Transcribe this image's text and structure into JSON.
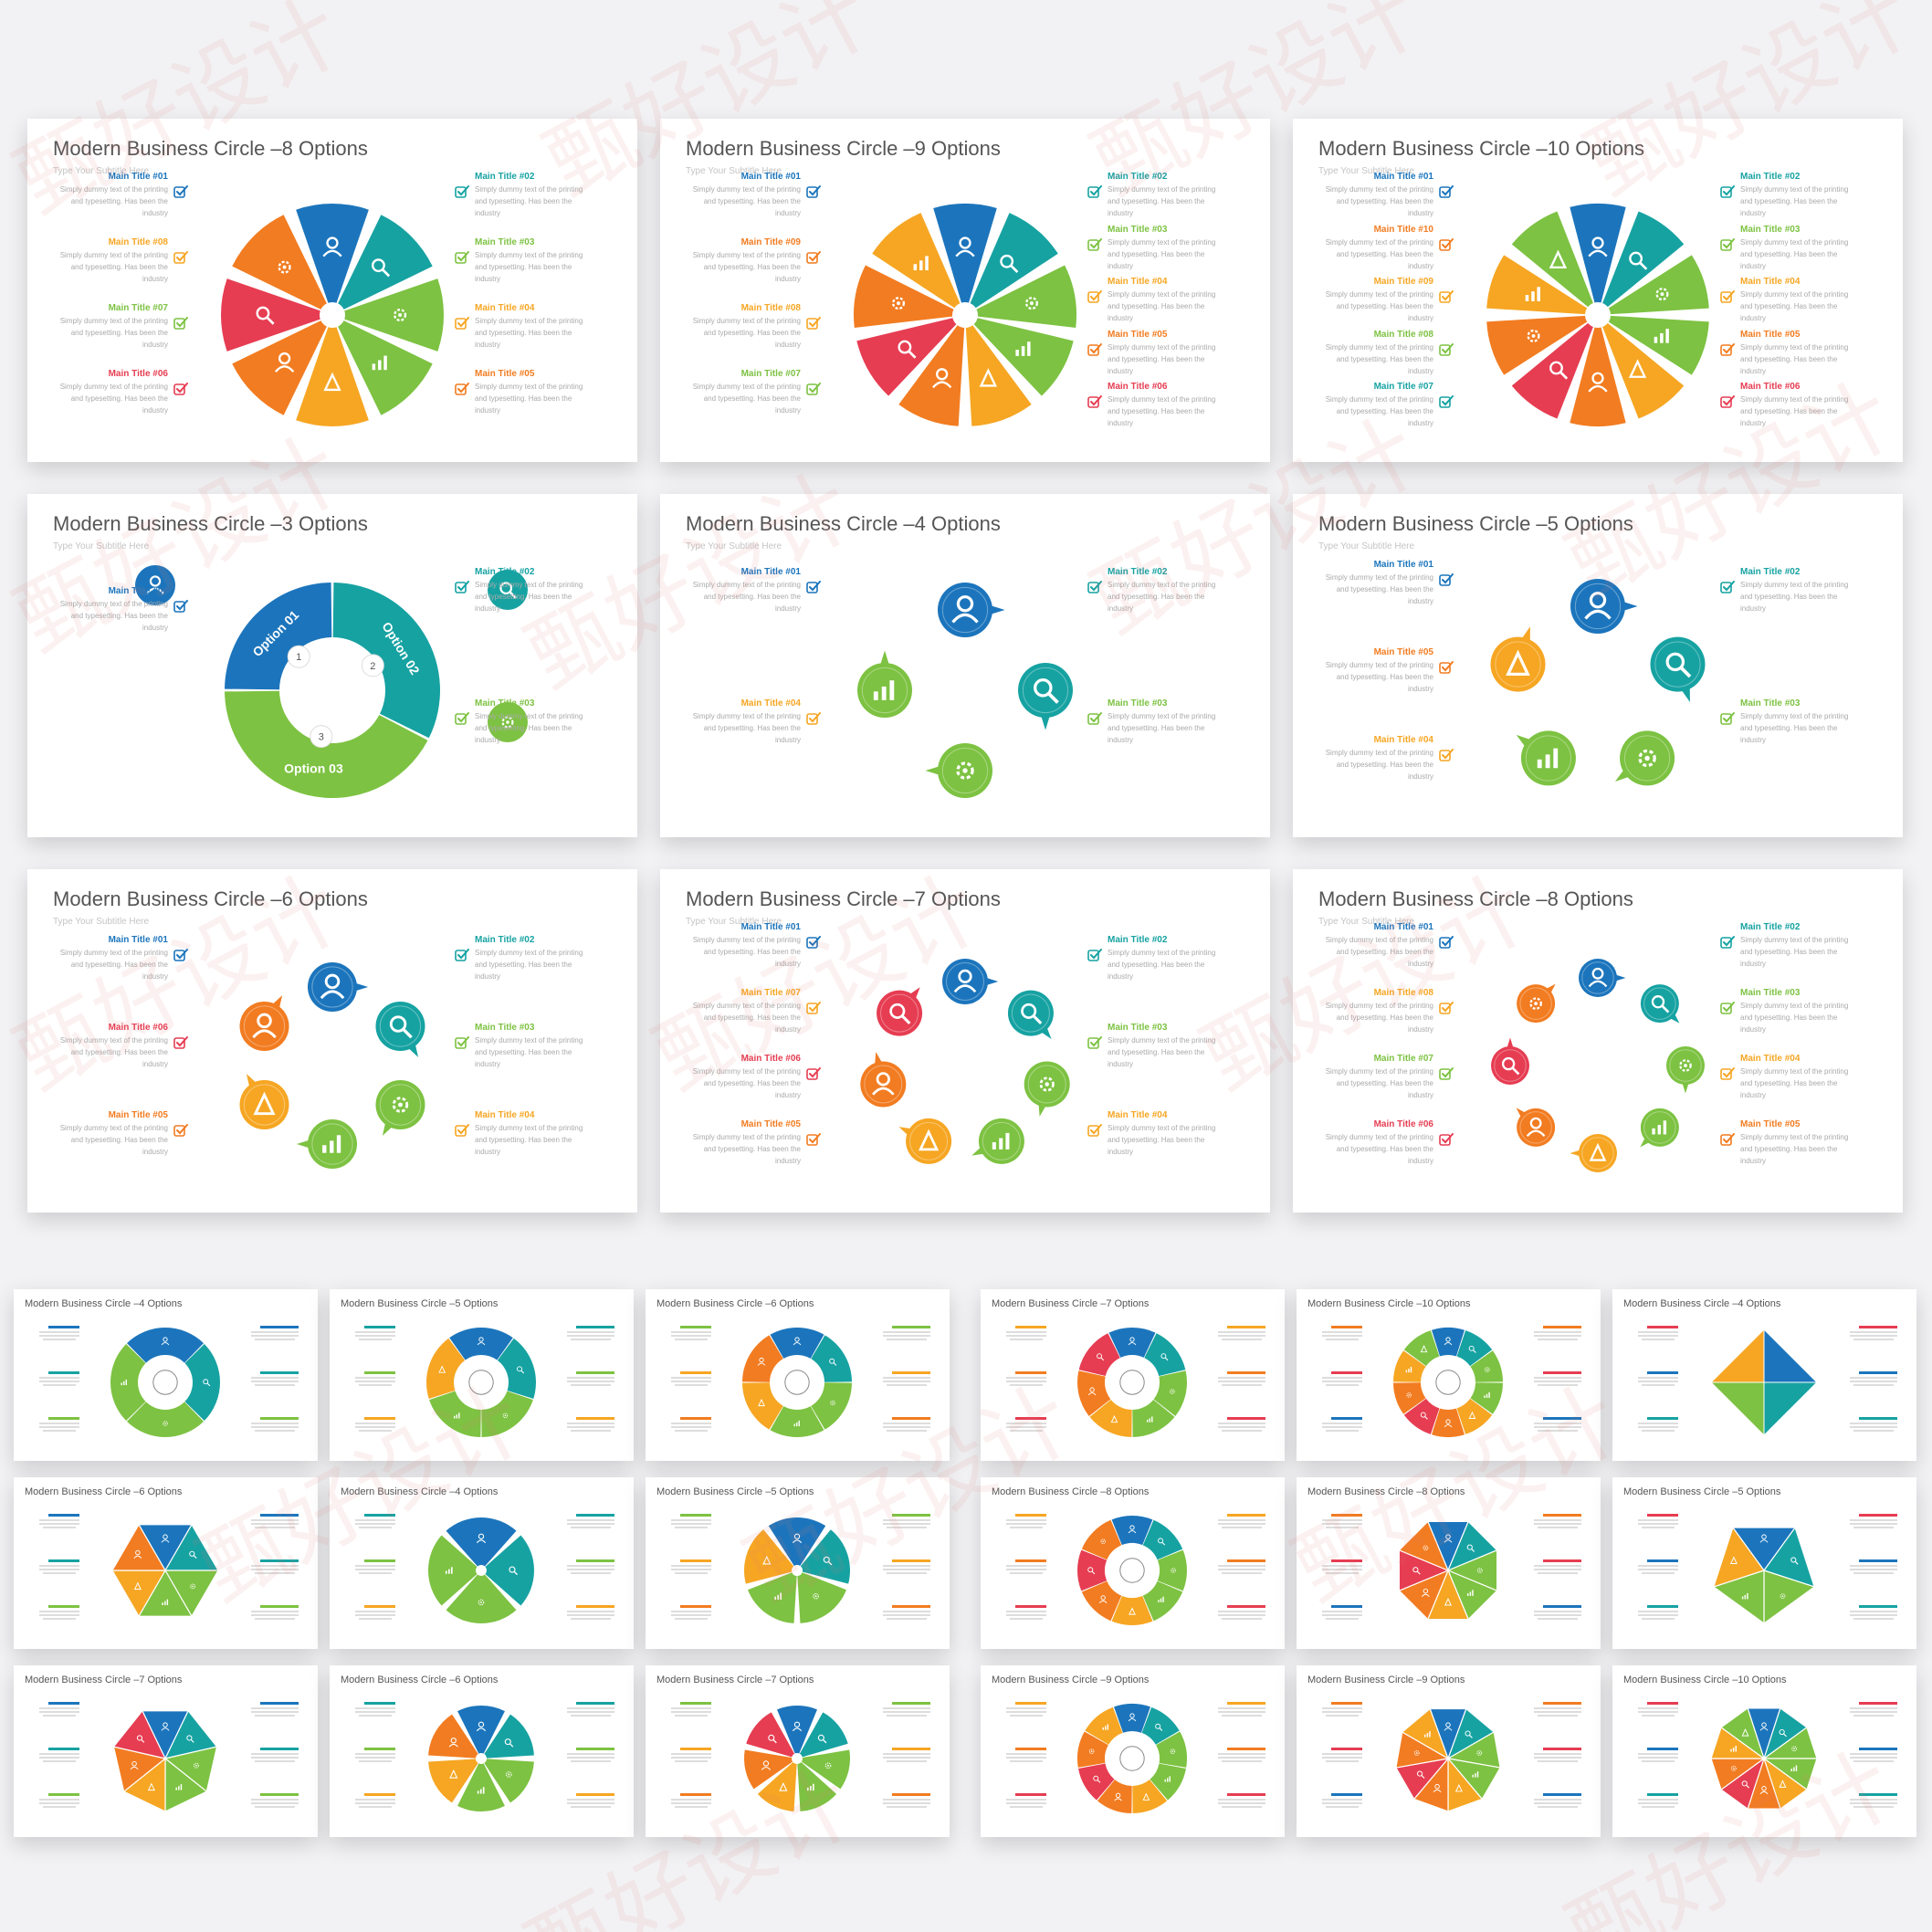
{
  "watermark": "甄好设计",
  "colors": {
    "blue": "#1c75bc",
    "teal": "#17a2a2",
    "green": "#7dc242",
    "yellow": "#f6a623",
    "orange": "#f27c21",
    "red": "#e63d52",
    "gray_title": "#555555"
  },
  "large_slides": [
    {
      "title": "Modern Business Circle –8 Options",
      "subtitle": "Type Your Subtitle Here",
      "left_items": [
        {
          "title": "Main Title #01",
          "color": "#1c75bc"
        },
        {
          "title": "Main Title #08",
          "color": "#f6a623"
        },
        {
          "title": "Main Title #07",
          "color": "#7dc242"
        },
        {
          "title": "Main Title #06",
          "color": "#e63d52"
        }
      ],
      "right_items": [
        {
          "title": "Main Title #02",
          "color": "#17a2a2"
        },
        {
          "title": "Main Title #03",
          "color": "#7dc242"
        },
        {
          "title": "Main Title #04",
          "color": "#f6a623"
        },
        {
          "title": "Main Title #05",
          "color": "#f27c21"
        }
      ]
    },
    {
      "title": "Modern Business Circle –9 Options",
      "subtitle": "Type Your Subtitle Here",
      "left_items": [
        {
          "title": "Main Title #01",
          "color": "#1c75bc"
        },
        {
          "title": "Main Title #09",
          "color": "#f27c21"
        },
        {
          "title": "Main Title #08",
          "color": "#f6a623"
        },
        {
          "title": "Main Title #07",
          "color": "#7dc242"
        }
      ],
      "right_items": [
        {
          "title": "Main Title #02",
          "color": "#17a2a2"
        },
        {
          "title": "Main Title #03",
          "color": "#7dc242"
        },
        {
          "title": "Main Title #04",
          "color": "#f6a623"
        },
        {
          "title": "Main Title #05",
          "color": "#f27c21"
        },
        {
          "title": "Main Title #06",
          "color": "#e63d52"
        }
      ]
    },
    {
      "title": "Modern Business Circle –10 Options",
      "subtitle": "Type Your Subtitle Here",
      "left_items": [
        {
          "title": "Main Title #01",
          "color": "#1c75bc"
        },
        {
          "title": "Main Title #10",
          "color": "#f27c21"
        },
        {
          "title": "Main Title #09",
          "color": "#f6a623"
        },
        {
          "title": "Main Title #08",
          "color": "#7dc242"
        },
        {
          "title": "Main Title #07",
          "color": "#17a2a2"
        }
      ],
      "right_items": [
        {
          "title": "Main Title #02",
          "color": "#17a2a2"
        },
        {
          "title": "Main Title #03",
          "color": "#7dc242"
        },
        {
          "title": "Main Title #04",
          "color": "#f6a623"
        },
        {
          "title": "Main Title #05",
          "color": "#f27c21"
        },
        {
          "title": "Main Title #06",
          "color": "#e63d52"
        }
      ]
    },
    {
      "title": "Modern Business Circle –3 Options",
      "subtitle": "Type Your Subtitle Here",
      "left_items": [
        {
          "title": "Main Title #01",
          "color": "#1c75bc"
        }
      ],
      "right_items": [
        {
          "title": "Main Title #02",
          "color": "#17a2a2"
        },
        {
          "title": "Main Title #03",
          "color": "#7dc242"
        }
      ],
      "segments": [
        "Option 01",
        "Option 02",
        "Option 03"
      ],
      "segment_numbers": [
        "1",
        "2",
        "3"
      ]
    },
    {
      "title": "Modern Business Circle –4 Options",
      "subtitle": "Type Your Subtitle Here",
      "left_items": [
        {
          "title": "Main Title #01",
          "color": "#1c75bc"
        },
        {
          "title": "Main Title #04",
          "color": "#f6a623"
        }
      ],
      "right_items": [
        {
          "title": "Main Title #02",
          "color": "#17a2a2"
        },
        {
          "title": "Main Title #03",
          "color": "#7dc242"
        }
      ]
    },
    {
      "title": "Modern Business Circle –5 Options",
      "subtitle": "Type Your Subtitle Here",
      "left_items": [
        {
          "title": "Main Title #01",
          "color": "#1c75bc"
        },
        {
          "title": "Main Title #05",
          "color": "#f27c21"
        },
        {
          "title": "Main Title #04",
          "color": "#f6a623"
        }
      ],
      "right_items": [
        {
          "title": "Main Title #02",
          "color": "#17a2a2"
        },
        {
          "title": "Main Title #03",
          "color": "#7dc242"
        }
      ]
    },
    {
      "title": "Modern Business Circle –6 Options",
      "subtitle": "Type Your Subtitle Here",
      "left_items": [
        {
          "title": "Main Title #01",
          "color": "#1c75bc"
        },
        {
          "title": "Main Title #06",
          "color": "#e63d52"
        },
        {
          "title": "Main Title #05",
          "color": "#f27c21"
        }
      ],
      "right_items": [
        {
          "title": "Main Title #02",
          "color": "#17a2a2"
        },
        {
          "title": "Main Title #03",
          "color": "#7dc242"
        },
        {
          "title": "Main Title #04",
          "color": "#f6a623"
        }
      ]
    },
    {
      "title": "Modern Business Circle –7 Options",
      "subtitle": "Type Your Subtitle Here",
      "left_items": [
        {
          "title": "Main Title #01",
          "color": "#1c75bc"
        },
        {
          "title": "Main Title #07",
          "color": "#f6a623"
        },
        {
          "title": "Main Title #06",
          "color": "#e63d52"
        },
        {
          "title": "Main Title #05",
          "color": "#f27c21"
        }
      ],
      "right_items": [
        {
          "title": "Main Title #02",
          "color": "#17a2a2"
        },
        {
          "title": "Main Title #03",
          "color": "#7dc242"
        },
        {
          "title": "Main Title #04",
          "color": "#f6a623"
        }
      ]
    },
    {
      "title": "Modern Business Circle –8 Options",
      "subtitle": "Type Your Subtitle Here",
      "left_items": [
        {
          "title": "Main Title #01",
          "color": "#1c75bc"
        },
        {
          "title": "Main Title #08",
          "color": "#f6a623"
        },
        {
          "title": "Main Title #07",
          "color": "#7dc242"
        },
        {
          "title": "Main Title #06",
          "color": "#e63d52"
        }
      ],
      "right_items": [
        {
          "title": "Main Title #02",
          "color": "#17a2a2"
        },
        {
          "title": "Main Title #03",
          "color": "#7dc242"
        },
        {
          "title": "Main Title #04",
          "color": "#f6a623"
        },
        {
          "title": "Main Title #05",
          "color": "#f27c21"
        }
      ]
    }
  ],
  "item_description": "Simply dummy text of the printing and typesetting. Has been the industry",
  "small_slides": [
    {
      "title": "Modern Business Circle –4 Options"
    },
    {
      "title": "Modern Business Circle –5 Options"
    },
    {
      "title": "Modern Business Circle –6 Options"
    },
    {
      "title": "Modern Business Circle –7 Options"
    },
    {
      "title": "Modern Business Circle –10 Options"
    },
    {
      "title": "Modern Business Circle –4 Options"
    },
    {
      "title": "Modern Business Circle –6 Options"
    },
    {
      "title": "Modern Business Circle –4 Options"
    },
    {
      "title": "Modern Business Circle –5 Options"
    },
    {
      "title": "Modern Business Circle –8 Options"
    },
    {
      "title": "Modern Business Circle –8 Options"
    },
    {
      "title": "Modern Business Circle –5 Options"
    },
    {
      "title": "Modern Business Circle –7 Options"
    },
    {
      "title": "Modern Business Circle –6 Options"
    },
    {
      "title": "Modern Business Circle –7 Options"
    },
    {
      "title": "Modern Business Circle –9 Options"
    },
    {
      "title": "Modern Business Circle –9 Options"
    },
    {
      "title": "Modern Business Circle –10 Options"
    }
  ]
}
